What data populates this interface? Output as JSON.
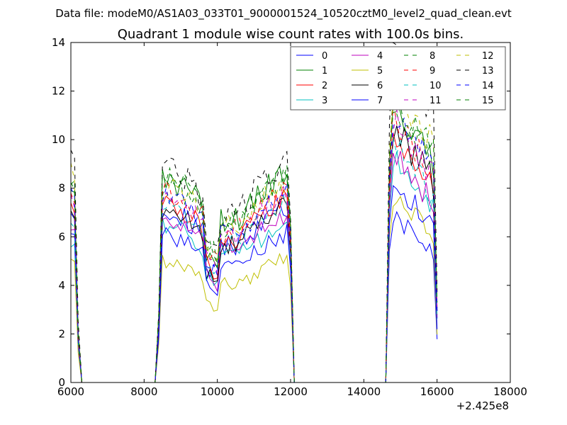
{
  "suptitle": "Data file: modeM0/AS1A03_033T01_9000001524_10520cztM0_level2_quad_clean.evt",
  "chart_data": {
    "type": "line",
    "title": "Quadrant 1 module wise count rates with 100.0s bins.",
    "xlabel": "",
    "ylabel": "",
    "x_offset_label": "+2.425e8",
    "xlim": [
      6000,
      18000
    ],
    "ylim": [
      0,
      14
    ],
    "x_ticks": [
      6000,
      8000,
      10000,
      12000,
      14000,
      16000,
      18000
    ],
    "y_ticks": [
      0,
      2,
      4,
      6,
      8,
      10,
      12,
      14
    ],
    "grid": false,
    "legend": {
      "placement": "top-right",
      "columns": 4
    },
    "series": [
      {
        "name": "0",
        "color": "#0000ff",
        "dash": "solid",
        "base": [
          7.2,
          6.6,
          6.3
        ]
      },
      {
        "name": "1",
        "color": "#008000",
        "dash": "solid",
        "base": [
          8.3,
          7.8,
          10.4
        ]
      },
      {
        "name": "2",
        "color": "#ff0000",
        "dash": "solid",
        "base": [
          7.4,
          6.9,
          9.2
        ]
      },
      {
        "name": "3",
        "color": "#00bfbf",
        "dash": "solid",
        "base": [
          6.0,
          6.0,
          8.3
        ]
      },
      {
        "name": "4",
        "color": "#bf00bf",
        "dash": "solid",
        "base": [
          6.6,
          6.3,
          8.6
        ]
      },
      {
        "name": "5",
        "color": "#bfbf00",
        "dash": "solid",
        "base": [
          5.3,
          4.7,
          7.0
        ]
      },
      {
        "name": "6",
        "color": "#000000",
        "dash": "solid",
        "base": [
          7.0,
          6.6,
          9.6
        ]
      },
      {
        "name": "7",
        "color": "#0000ff",
        "dash": "solid",
        "base": [
          6.4,
          5.6,
          7.6
        ]
      },
      {
        "name": "8",
        "color": "#008000",
        "dash": "dashed",
        "base": [
          8.6,
          7.6,
          10.7
        ]
      },
      {
        "name": "9",
        "color": "#ff0000",
        "dash": "dashed",
        "base": [
          7.8,
          7.3,
          10.1
        ]
      },
      {
        "name": "10",
        "color": "#00bfbf",
        "dash": "dashed",
        "base": [
          6.8,
          6.7,
          9.0
        ]
      },
      {
        "name": "11",
        "color": "#bf00bf",
        "dash": "dashed",
        "base": [
          7.6,
          7.0,
          9.9
        ]
      },
      {
        "name": "12",
        "color": "#bfbf00",
        "dash": "dashed",
        "base": [
          8.9,
          7.5,
          11.2
        ]
      },
      {
        "name": "13",
        "color": "#000000",
        "dash": "dashed",
        "base": [
          9.6,
          8.2,
          12.4
        ]
      },
      {
        "name": "14",
        "color": "#0000ff",
        "dash": "dashed",
        "base": [
          8.0,
          7.2,
          10.3
        ]
      },
      {
        "name": "15",
        "color": "#008000",
        "dash": "dashed",
        "base": [
          8.5,
          7.9,
          10.8
        ]
      }
    ],
    "segments": {
      "x_step": 100,
      "on_ranges": [
        [
          6000,
          6300
        ],
        [
          8300,
          12100
        ],
        [
          14600,
          16000
        ]
      ],
      "ramp_points": [
        {
          "x": 6100,
          "rel": 0.95
        },
        {
          "x": 6200,
          "rel": 0.25
        },
        {
          "x": 6300,
          "rel": 0
        },
        {
          "x": 8300,
          "rel": 0
        },
        {
          "x": 8400,
          "rel": 0.35
        },
        {
          "x": 12000,
          "rel": 0.82
        },
        {
          "x": 12100,
          "rel": 0
        },
        {
          "x": 14600,
          "rel": 0
        },
        {
          "x": 14700,
          "rel": 0.85
        },
        {
          "x": 16000,
          "rel": 0.3
        }
      ]
    }
  }
}
